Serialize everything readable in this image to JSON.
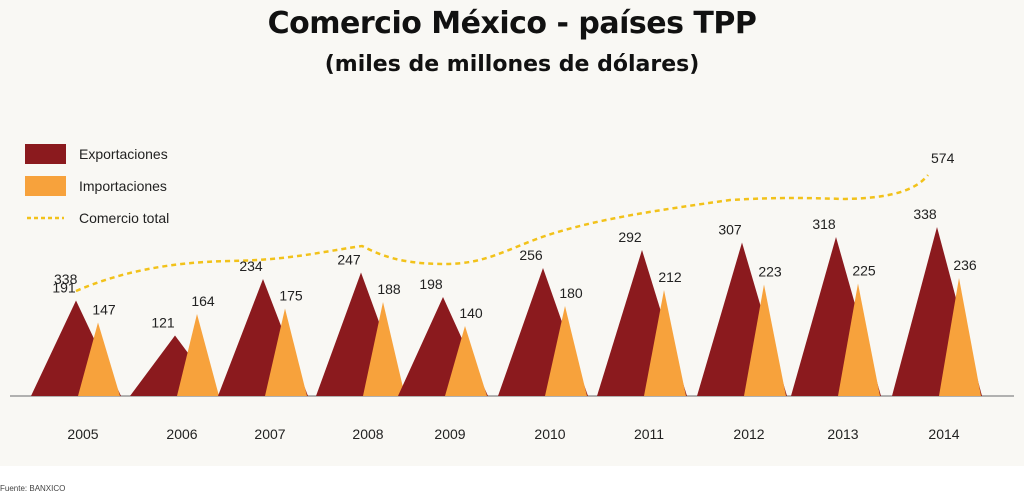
{
  "title": "Comercio México - países TPP",
  "subtitle": "(miles de millones de dólares)",
  "source": "Fuente: BANXICO",
  "colors": {
    "exports": "#8b1a1e",
    "imports": "#f7a23c",
    "total": "#f2c21a",
    "axis": "#999999",
    "background": "#f9f8f4"
  },
  "chart_data": {
    "type": "area",
    "categories": [
      "2005",
      "2006",
      "2007",
      "2008",
      "2009",
      "2010",
      "2011",
      "2012",
      "2013",
      "2014"
    ],
    "series": [
      {
        "name": "Exportaciones",
        "values": [
          191,
          121,
          234,
          247,
          198,
          256,
          292,
          307,
          318,
          338
        ]
      },
      {
        "name": "Importaciones",
        "values": [
          147,
          164,
          175,
          188,
          140,
          180,
          212,
          223,
          225,
          236
        ]
      },
      {
        "name": "Comercio total",
        "values": [
          338,
          null,
          null,
          null,
          null,
          null,
          null,
          null,
          null,
          574
        ]
      }
    ],
    "legend_position": "left",
    "grid": false
  }
}
